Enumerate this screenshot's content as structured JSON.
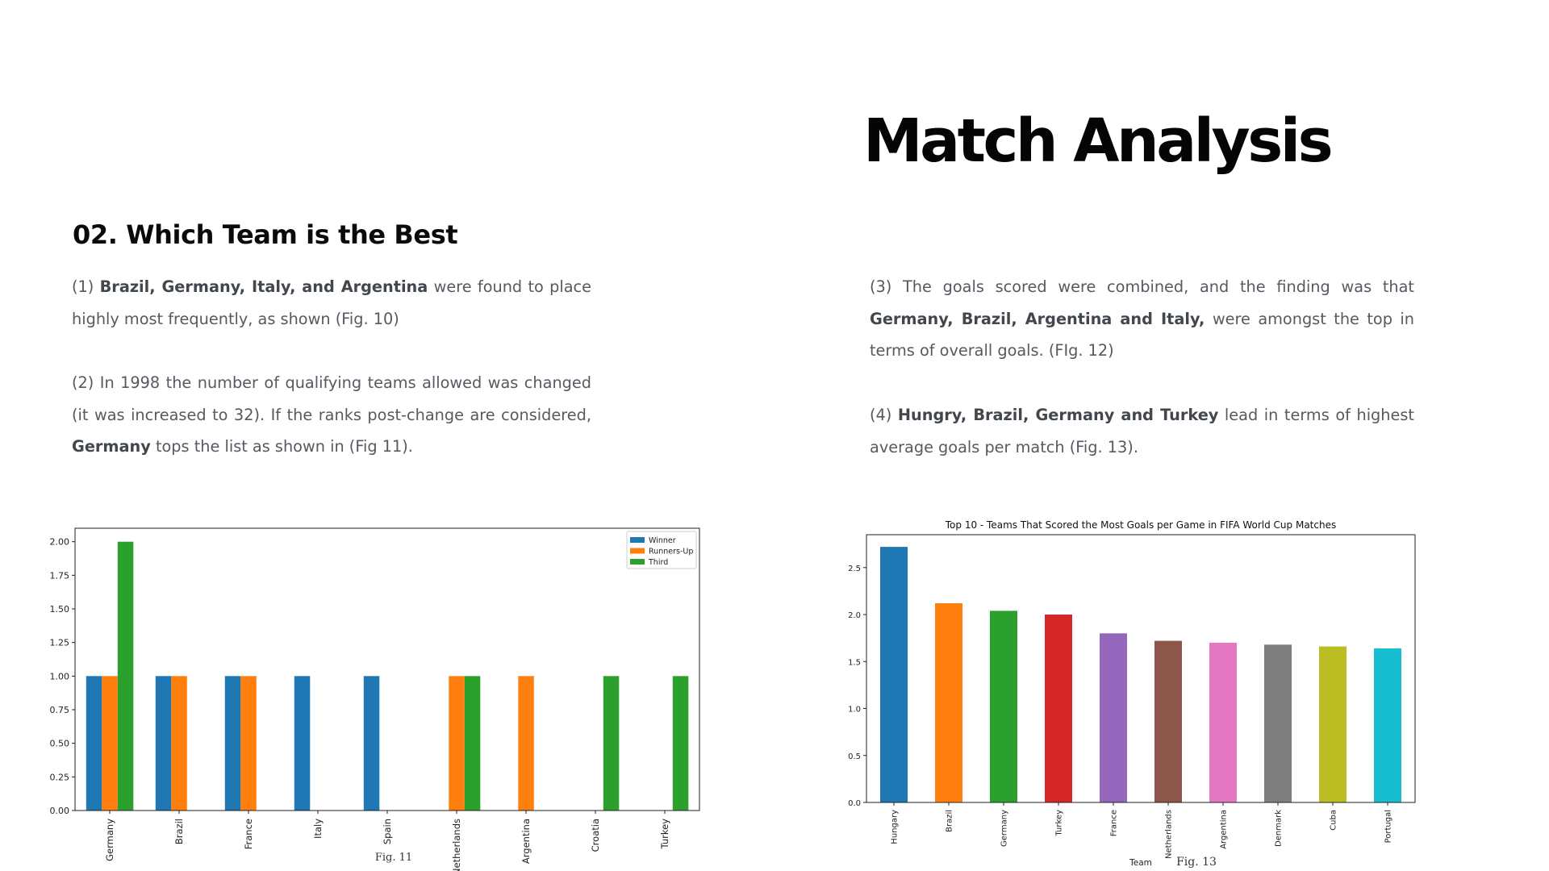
{
  "slide": {
    "title": "Match Analysis",
    "section_heading": "02. Which Team is the Best"
  },
  "paragraphs": {
    "p1": {
      "prefix": "(1) ",
      "bold": "Brazil, Germany, Italy, and Argentina",
      "suffix": " were found to place highly most frequently, as shown (Fig. 10)"
    },
    "p2": {
      "prefix": "(2) In 1998 the number of qualifying teams allowed was changed (it was increased to 32). If the ranks post-change are considered, ",
      "bold": "Germany",
      "suffix": " tops the list as shown in (Fig 11)."
    },
    "p3": {
      "prefix": "(3) The goals scored were combined, and the finding was that ",
      "bold": "Germany, Brazil, Argentina and Italy,",
      "suffix": " were amongst the top in terms of overall goals. (FIg. 12)"
    },
    "p4": {
      "prefix": "(4) ",
      "bold": "Hungry, Brazil, Germany and Turkey",
      "suffix": " lead in terms of highest average goals per match (Fig. 13)."
    }
  },
  "colors": {
    "blue": "#1f77b4",
    "orange": "#ff7f0e",
    "green": "#2ca02c",
    "red": "#d62728",
    "purple": "#9467bd",
    "brown": "#8c564b",
    "pink": "#e377c2",
    "gray": "#7f7f7f",
    "olive": "#bcbd22",
    "cyan": "#17becf"
  },
  "chart_data": [
    {
      "id": "fig11",
      "type": "bar",
      "caption": "Fig. 11",
      "title": "",
      "xlabel": "",
      "ylabel": "",
      "ylim": [
        0,
        2.1
      ],
      "yticks": [
        0.0,
        0.25,
        0.5,
        0.75,
        1.0,
        1.25,
        1.5,
        1.75,
        2.0
      ],
      "ytick_labels": [
        "0.00",
        "0.25",
        "0.50",
        "0.75",
        "1.00",
        "1.25",
        "1.50",
        "1.75",
        "2.00"
      ],
      "categories": [
        "Germany",
        "Brazil",
        "France",
        "Italy",
        "Spain",
        "Netherlands",
        "Argentina",
        "Croatia",
        "Turkey"
      ],
      "series": [
        {
          "name": "Winner",
          "color": "#1f77b4",
          "values": [
            1,
            1,
            1,
            1,
            1,
            0,
            0,
            0,
            0
          ]
        },
        {
          "name": "Runners-Up",
          "color": "#ff7f0e",
          "values": [
            1,
            1,
            1,
            0,
            0,
            1,
            1,
            0,
            0
          ]
        },
        {
          "name": "Third",
          "color": "#2ca02c",
          "values": [
            2,
            0,
            0,
            0,
            0,
            1,
            0,
            1,
            1
          ]
        }
      ],
      "legend": "top-right"
    },
    {
      "id": "fig13",
      "type": "bar",
      "caption": "Fig. 13",
      "title": "Top 10 - Teams That Scored the Most Goals per Game in FIFA World Cup Matches",
      "xlabel": "Team",
      "ylabel": "",
      "ylim": [
        0,
        2.85
      ],
      "yticks": [
        0.0,
        0.5,
        1.0,
        1.5,
        2.0,
        2.5
      ],
      "ytick_labels": [
        "0.0",
        "0.5",
        "1.0",
        "1.5",
        "2.0",
        "2.5"
      ],
      "categories": [
        "Hungary",
        "Brazil",
        "Germany",
        "Turkey",
        "France",
        "Netherlands",
        "Argentina",
        "Denmark",
        "Cuba",
        "Portugal"
      ],
      "values": [
        2.72,
        2.12,
        2.04,
        2.0,
        1.8,
        1.72,
        1.7,
        1.68,
        1.66,
        1.64
      ],
      "bar_colors": [
        "#1f77b4",
        "#ff7f0e",
        "#2ca02c",
        "#d62728",
        "#9467bd",
        "#8c564b",
        "#e377c2",
        "#7f7f7f",
        "#bcbd22",
        "#17becf"
      ],
      "legend": "none"
    }
  ]
}
